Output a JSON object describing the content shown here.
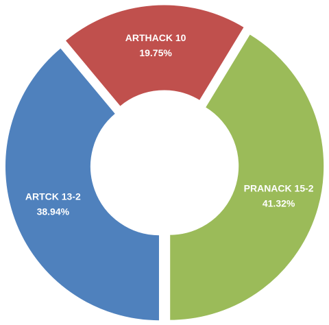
{
  "chart_data": {
    "type": "donut",
    "categories": [
      "ARTHACK 10",
      "PRANACK 15-2",
      "ARTCK 13-2"
    ],
    "values": [
      19.75,
      41.32,
      38.94
    ],
    "value_labels": [
      "19.75%",
      "41.32%",
      "38.94%"
    ],
    "colors": [
      "#c0504d",
      "#9bbb59",
      "#4f81bd"
    ]
  }
}
